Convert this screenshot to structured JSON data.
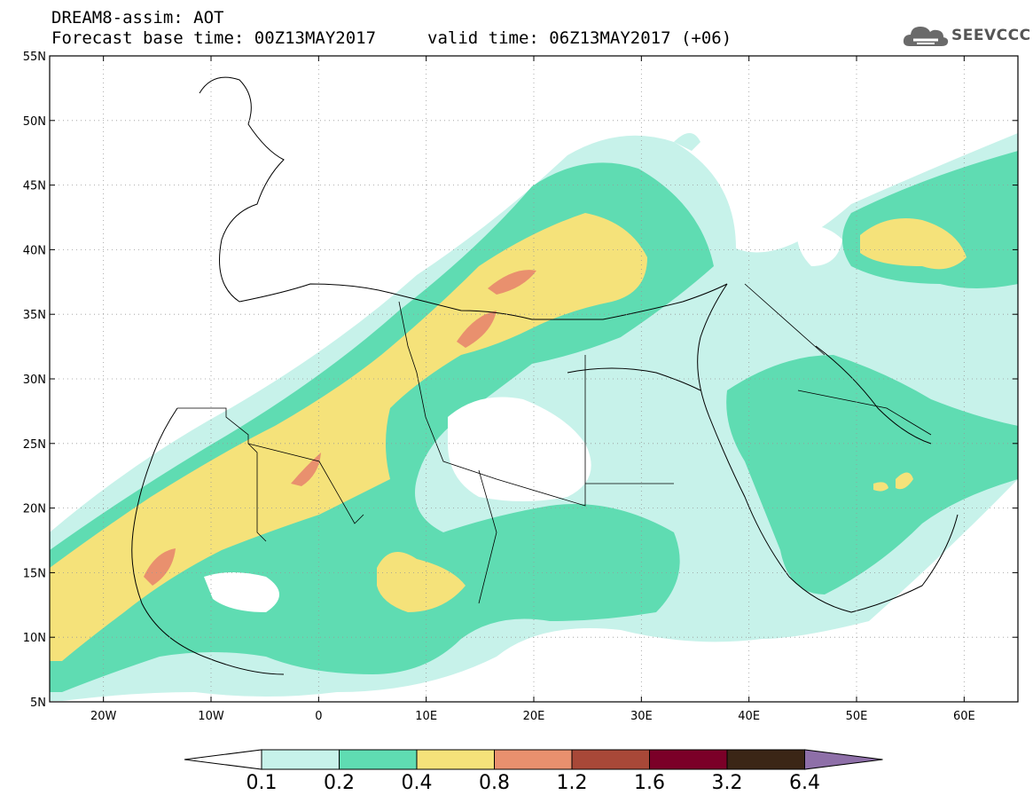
{
  "header": {
    "title_line1": "DREAM8-assim: AOT",
    "title_line2": "Forecast base time: 00Z13MAY2017",
    "valid_time": "valid time: 06Z13MAY2017 (+06)",
    "logo_text": "SEEVCCC",
    "logo_icon": "cloud-icon"
  },
  "map": {
    "lon_range": [
      -25,
      65
    ],
    "lat_range": [
      5,
      55
    ],
    "lat_labels": [
      "5N",
      "10N",
      "15N",
      "20N",
      "25N",
      "30N",
      "35N",
      "40N",
      "45N",
      "50N",
      "55N"
    ],
    "lon_labels": [
      "20W",
      "10W",
      "0",
      "10E",
      "20E",
      "30E",
      "40E",
      "50E",
      "60E"
    ],
    "gridlines": "dotted",
    "field": "Aerosol Optical Thickness (AOT)"
  },
  "colorbar": {
    "labels": [
      "0.1",
      "0.2",
      "0.4",
      "0.8",
      "1.2",
      "1.6",
      "3.2",
      "6.4"
    ],
    "colors": [
      "#ffffff",
      "#c7f2ea",
      "#5fdcb2",
      "#f5e27a",
      "#e9906e",
      "#a84838",
      "#7b0028",
      "#3b2616",
      "#8e6fa8"
    ],
    "extend": "both"
  }
}
